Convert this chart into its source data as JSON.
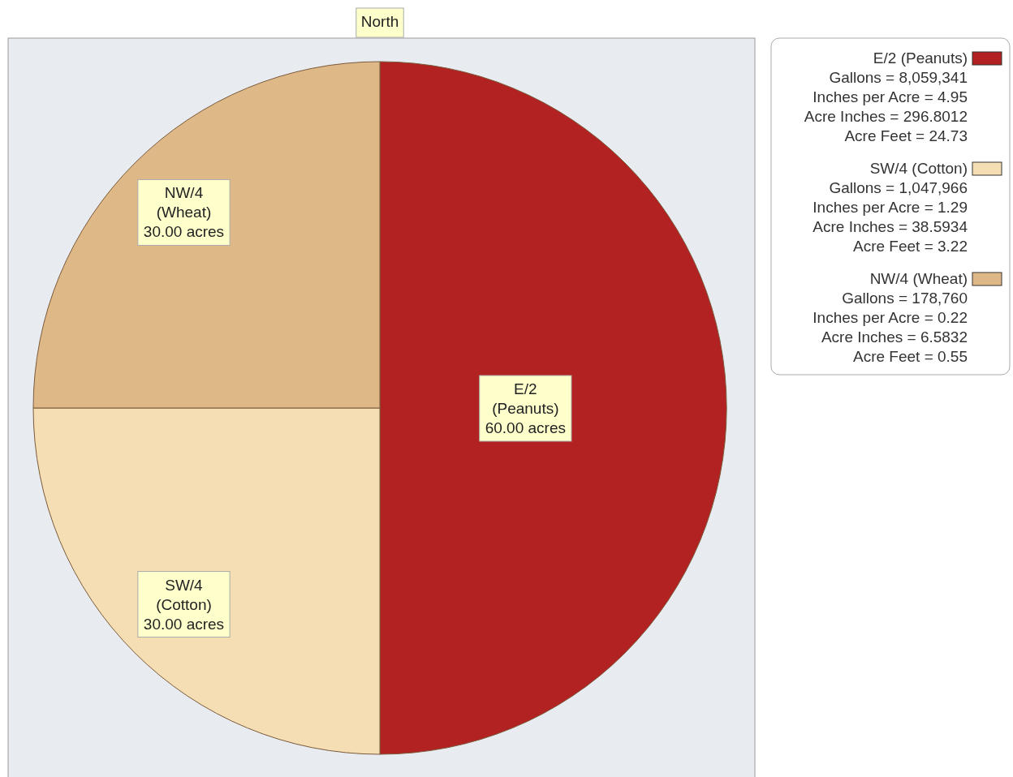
{
  "chart_data": {
    "type": "pie",
    "categories": [
      "E/2 (Peanuts)",
      "SW/4 (Cotton)",
      "NW/4 (Wheat)"
    ],
    "values": [
      60,
      30,
      30
    ],
    "colors": [
      "#b22222",
      "#f5deb3",
      "#deb887"
    ],
    "value_labels": [
      "60.00 acres",
      "30.00 acres",
      "30.00 acres"
    ],
    "legend": "right",
    "annotations": [
      "North",
      "Gallons = 8,059,341",
      "Inches per Acre = 4.95",
      "Acre Inches = 296.8012",
      "Acre Feet = 24.73",
      "Gallons = 1,047,966",
      "Inches per Acre = 1.29",
      "Acre Inches = 38.5934",
      "Acre Feet = 3.22",
      "Gallons = 178,760",
      "Inches per Acre = 0.22",
      "Acre Inches = 6.5832",
      "Acre Feet = 0.55"
    ]
  }
}
